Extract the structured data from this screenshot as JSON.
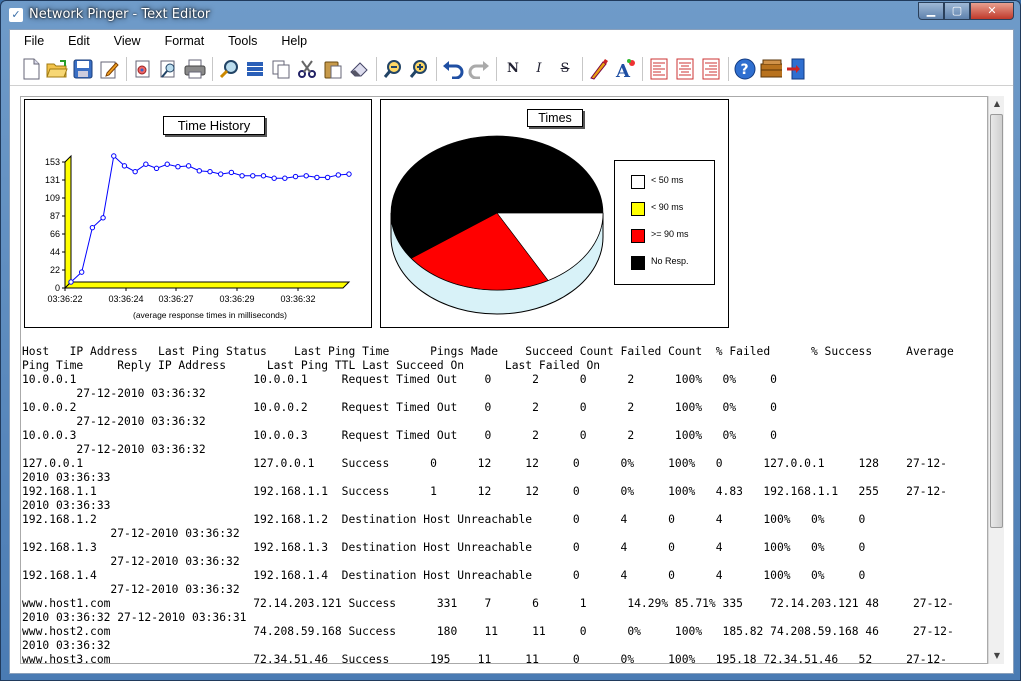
{
  "window": {
    "title": "Network Pinger - Text Editor"
  },
  "menu": [
    "File",
    "Edit",
    "View",
    "Format",
    "Tools",
    "Help"
  ],
  "toolbar": {
    "icons": [
      "new-file",
      "open-folder",
      "save",
      "edit",
      "print-preview",
      "find-doc",
      "print",
      "find",
      "stack",
      "copy-doc",
      "cut",
      "paste",
      "eraser",
      "zoom-out",
      "zoom-in",
      "undo",
      "redo",
      "normal-text",
      "italic-text",
      "strike-text",
      "font-color",
      "font",
      "align-left",
      "align-center",
      "align-right",
      "help",
      "toolbox",
      "exit"
    ]
  },
  "charts": {
    "line_title": "Time History",
    "line_caption": "(average response times in milliseconds)",
    "pie_title": "Times",
    "legend": [
      "< 50 ms",
      "< 90 ms",
      ">= 90 ms",
      "No Resp."
    ],
    "legend_colors": [
      "#ffffff",
      "#ffff00",
      "#ff0000",
      "#000000"
    ]
  },
  "chart_data": [
    {
      "type": "line",
      "title": "Time History",
      "xlabel": "(average response times in milliseconds)",
      "y_ticks": [
        "153",
        "131",
        "109",
        "87",
        "66",
        "44",
        "22",
        "0"
      ],
      "x_ticks": [
        "03:36:22",
        "03:36:24",
        "03:36:27",
        "03:36:29",
        "03:36:32"
      ],
      "ylim": [
        0,
        153
      ],
      "values": [
        0,
        12,
        66,
        78,
        153,
        141,
        134,
        143,
        138,
        143,
        140,
        141,
        135,
        134,
        131,
        133,
        129,
        129,
        129,
        126,
        126,
        128,
        129,
        127,
        127,
        130,
        131
      ]
    },
    {
      "type": "pie",
      "title": "Times",
      "categories": [
        "< 50 ms",
        "< 90 ms",
        ">= 90 ms",
        "No Resp."
      ],
      "values": [
        17,
        0,
        23,
        60
      ],
      "colors": [
        "#ffffff",
        "#ffff00",
        "#ff0000",
        "#000000"
      ]
    }
  ],
  "report": {
    "lines": [
      "Host   IP Address   Last Ping Status    Last Ping Time      Pings Made    Succeed Count Failed Count  % Failed      % Success     Average",
      "Ping Time     Reply IP Address      Last Ping TTL Last Succeed On      Last Failed On",
      "10.0.0.1                          10.0.0.1     Request Timed Out    0      2      0      2      100%   0%     0",
      "        27-12-2010 03:36:32",
      "10.0.0.2                          10.0.0.2     Request Timed Out    0      2      0      2      100%   0%     0",
      "        27-12-2010 03:36:32",
      "10.0.0.3                          10.0.0.3     Request Timed Out    0      2      0      2      100%   0%     0",
      "        27-12-2010 03:36:32",
      "127.0.0.1                         127.0.0.1    Success      0      12     12     0      0%     100%   0      127.0.0.1     128    27-12-",
      "2010 03:36:33",
      "192.168.1.1                       192.168.1.1  Success      1      12     12     0      0%     100%   4.83   192.168.1.1   255    27-12-",
      "2010 03:36:33",
      "192.168.1.2                       192.168.1.2  Destination Host Unreachable      0      4      0      4      100%   0%     0",
      "             27-12-2010 03:36:32",
      "192.168.1.3                       192.168.1.3  Destination Host Unreachable      0      4      0      4      100%   0%     0",
      "             27-12-2010 03:36:32",
      "192.168.1.4                       192.168.1.4  Destination Host Unreachable      0      4      0      4      100%   0%     0",
      "             27-12-2010 03:36:32",
      "www.host1.com                     72.14.203.121 Success      331    7      6      1      14.29% 85.71% 335    72.14.203.121 48     27-12-",
      "2010 03:36:32 27-12-2010 03:36:31",
      "www.host2.com                     74.208.59.168 Success      180    11     11     0      0%     100%   185.82 74.208.59.168 46     27-12-",
      "2010 03:36:32",
      "www.host3.com                     72.34.51.46  Success      195    11     11     0      0%     100%   195.18 72.34.51.46   52     27-12-"
    ]
  }
}
